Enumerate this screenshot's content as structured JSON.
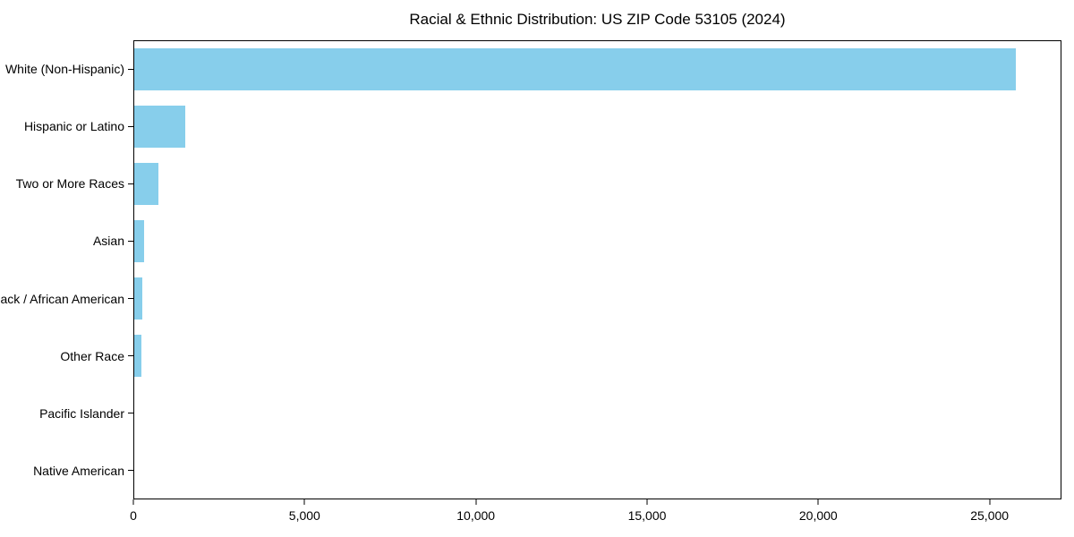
{
  "chart_data": {
    "type": "bar",
    "orientation": "horizontal",
    "title": "Racial & Ethnic Distribution: US ZIP Code 53105 (2024)",
    "categories": [
      "White (Non-Hispanic)",
      "Hispanic or Latino",
      "Two or More Races",
      "Asian",
      "Black / African American",
      "Other Race",
      "Pacific Islander",
      "Native American"
    ],
    "values": [
      25800,
      1500,
      700,
      290,
      240,
      210,
      0,
      0
    ],
    "xlabel": "",
    "ylabel": "",
    "xlim": [
      0,
      27100
    ],
    "x_ticks": [
      0,
      5000,
      10000,
      15000,
      20000,
      25000
    ],
    "x_tick_labels": [
      "0",
      "5,000",
      "10,000",
      "15,000",
      "20,000",
      "25,000"
    ],
    "bar_color": "#87CEEB",
    "text_color": "#000000",
    "grid": false,
    "legend": "none"
  }
}
